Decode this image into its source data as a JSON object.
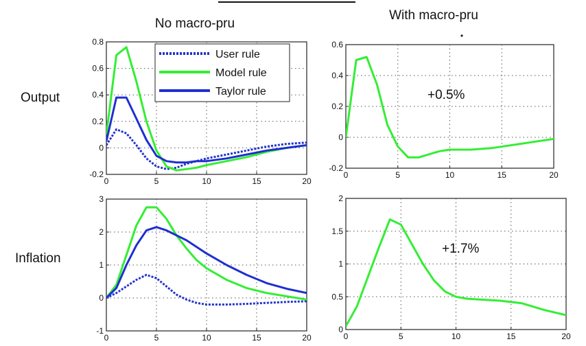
{
  "header": {
    "col_left": "No macro-pru",
    "col_right": "With macro-pru"
  },
  "rows": {
    "output": "Output",
    "inflation": "Inflation"
  },
  "colors": {
    "user": "#2233cc",
    "model": "#33ee33",
    "taylor": "#1f2fd0"
  },
  "chart_data": [
    {
      "id": "output-no-macro",
      "type": "line",
      "xlim": [
        0,
        20
      ],
      "ylim": [
        -0.2,
        0.8
      ],
      "xticks": [
        "0",
        "5",
        "10",
        "15",
        "20"
      ],
      "yticks": [
        "-0.2",
        "0",
        "0.2",
        "0.4",
        "0.6",
        "0.8"
      ],
      "legend": "top-right",
      "grid": true,
      "series": [
        {
          "name": "User rule",
          "style": "dotted",
          "color": "#2233cc",
          "x": [
            0,
            1,
            2,
            3,
            4,
            5,
            6,
            7,
            8,
            9,
            10,
            12,
            14,
            16,
            18,
            20
          ],
          "y": [
            0.02,
            0.14,
            0.11,
            0.02,
            -0.08,
            -0.14,
            -0.16,
            -0.15,
            -0.12,
            -0.1,
            -0.08,
            -0.05,
            -0.02,
            0.01,
            0.03,
            0.04
          ]
        },
        {
          "name": "Model rule",
          "style": "solid",
          "color": "#33ee33",
          "x": [
            0,
            1,
            2,
            3,
            4,
            5,
            6,
            7,
            8,
            9,
            10,
            12,
            14,
            16,
            18,
            20
          ],
          "y": [
            0.1,
            0.7,
            0.76,
            0.5,
            0.2,
            -0.02,
            -0.14,
            -0.17,
            -0.16,
            -0.15,
            -0.13,
            -0.1,
            -0.07,
            -0.03,
            0.0,
            0.02
          ]
        },
        {
          "name": "Taylor rule",
          "style": "solid",
          "color": "#1f2fd0",
          "x": [
            0,
            1,
            2,
            3,
            4,
            5,
            6,
            7,
            8,
            9,
            10,
            12,
            14,
            16,
            18,
            20
          ],
          "y": [
            0.05,
            0.38,
            0.38,
            0.22,
            0.06,
            -0.06,
            -0.1,
            -0.11,
            -0.11,
            -0.1,
            -0.1,
            -0.08,
            -0.05,
            -0.02,
            0.0,
            0.02
          ]
        }
      ]
    },
    {
      "id": "output-macro",
      "type": "line",
      "xlim": [
        0,
        20
      ],
      "ylim": [
        -0.2,
        0.6
      ],
      "xticks": [
        "0",
        "5",
        "10",
        "15",
        "20"
      ],
      "yticks": [
        "-0.2",
        "0",
        "0.2",
        "0.4",
        "0.6"
      ],
      "grid": true,
      "annotation": "+0.5%",
      "series": [
        {
          "style": "solid",
          "color": "#33ee33",
          "x": [
            0,
            1,
            2,
            3,
            4,
            5,
            6,
            7,
            8,
            9,
            10,
            12,
            14,
            16,
            18,
            20
          ],
          "y": [
            0.0,
            0.5,
            0.52,
            0.34,
            0.08,
            -0.06,
            -0.13,
            -0.13,
            -0.11,
            -0.09,
            -0.08,
            -0.08,
            -0.07,
            -0.05,
            -0.03,
            -0.01
          ]
        }
      ]
    },
    {
      "id": "inflation-no-macro",
      "type": "line",
      "xlim": [
        0,
        20
      ],
      "ylim": [
        -1,
        3
      ],
      "xticks": [
        "0",
        "5",
        "10",
        "15",
        "20"
      ],
      "yticks": [
        "-1",
        "0",
        "1",
        "2",
        "3"
      ],
      "grid": true,
      "series": [
        {
          "name": "User rule",
          "style": "dotted",
          "color": "#2233cc",
          "x": [
            0,
            1,
            2,
            3,
            4,
            5,
            6,
            7,
            8,
            9,
            10,
            12,
            14,
            16,
            18,
            20
          ],
          "y": [
            0.0,
            0.15,
            0.35,
            0.55,
            0.7,
            0.6,
            0.35,
            0.1,
            -0.05,
            -0.15,
            -0.2,
            -0.2,
            -0.18,
            -0.15,
            -0.12,
            -0.1
          ]
        },
        {
          "name": "Model rule",
          "style": "solid",
          "color": "#33ee33",
          "x": [
            0,
            1,
            2,
            3,
            4,
            5,
            6,
            7,
            8,
            9,
            10,
            12,
            14,
            16,
            18,
            20
          ],
          "y": [
            0.0,
            0.4,
            1.3,
            2.2,
            2.75,
            2.75,
            2.4,
            1.9,
            1.5,
            1.15,
            0.9,
            0.55,
            0.3,
            0.15,
            0.05,
            -0.05
          ]
        },
        {
          "name": "Taylor rule",
          "style": "solid",
          "color": "#1f2fd0",
          "x": [
            0,
            1,
            2,
            3,
            4,
            5,
            6,
            7,
            8,
            9,
            10,
            12,
            14,
            16,
            18,
            20
          ],
          "y": [
            0.0,
            0.3,
            1.0,
            1.6,
            2.05,
            2.15,
            2.05,
            1.9,
            1.75,
            1.55,
            1.35,
            1.0,
            0.7,
            0.45,
            0.28,
            0.15
          ]
        }
      ]
    },
    {
      "id": "inflation-macro",
      "type": "line",
      "xlim": [
        0,
        20
      ],
      "ylim": [
        0,
        2
      ],
      "xticks": [
        "0",
        "5",
        "10",
        "15",
        "20"
      ],
      "yticks": [
        "0",
        "0.5",
        "1",
        "1.5",
        "2"
      ],
      "grid": true,
      "annotation": "+1.7%",
      "series": [
        {
          "style": "solid",
          "color": "#33ee33",
          "x": [
            0,
            1,
            2,
            3,
            4,
            5,
            6,
            7,
            8,
            9,
            10,
            11,
            12,
            14,
            16,
            18,
            20
          ],
          "y": [
            0.05,
            0.35,
            0.8,
            1.25,
            1.68,
            1.6,
            1.3,
            1.0,
            0.75,
            0.58,
            0.5,
            0.47,
            0.46,
            0.44,
            0.4,
            0.3,
            0.22
          ]
        }
      ]
    }
  ]
}
